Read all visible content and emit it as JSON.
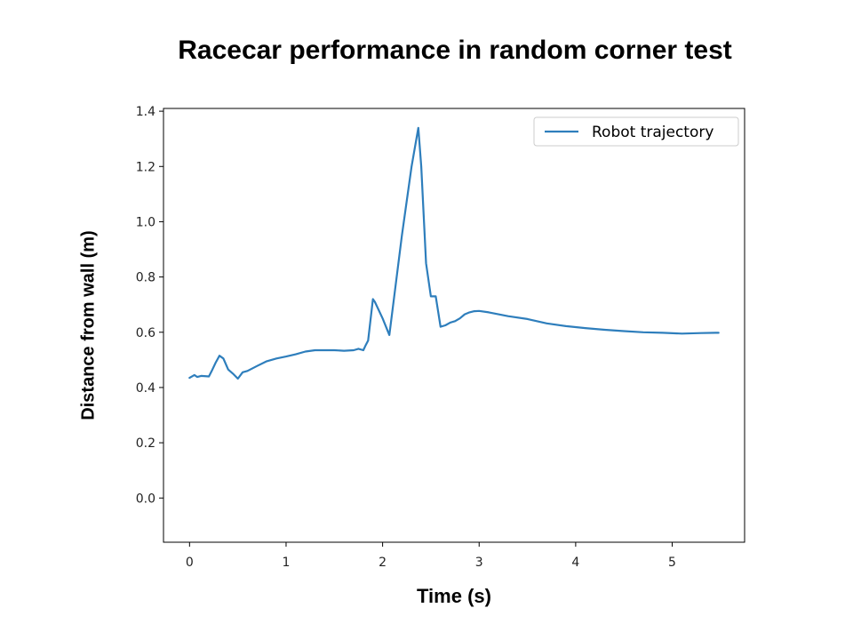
{
  "chart_data": {
    "type": "line",
    "title": "Racecar performance in random corner test",
    "xlabel": "Time (s)",
    "ylabel": "Distance from wall (m)",
    "xlim": [
      -0.27,
      5.75
    ],
    "ylim": [
      -0.16,
      1.41
    ],
    "xticks": [
      0,
      1,
      2,
      3,
      4,
      5
    ],
    "yticks": [
      0.0,
      0.2,
      0.4,
      0.6,
      0.8,
      1.0,
      1.2,
      1.4
    ],
    "xtick_labels": [
      "0",
      "1",
      "2",
      "3",
      "4",
      "5"
    ],
    "ytick_labels": [
      "0.0",
      "0.2",
      "0.4",
      "0.6",
      "0.8",
      "1.0",
      "1.2",
      "1.4"
    ],
    "grid": false,
    "legend_position": "top-right",
    "color": "#2e7ebc",
    "series": [
      {
        "name": "Robot trajectory",
        "x": [
          0.0,
          0.05,
          0.08,
          0.12,
          0.2,
          0.23,
          0.27,
          0.31,
          0.35,
          0.4,
          0.45,
          0.5,
          0.55,
          0.6,
          0.7,
          0.8,
          0.9,
          1.0,
          1.1,
          1.2,
          1.3,
          1.4,
          1.5,
          1.6,
          1.7,
          1.75,
          1.8,
          1.82,
          1.85,
          1.9,
          1.92,
          2.0,
          2.07,
          2.2,
          2.3,
          2.37,
          2.4,
          2.45,
          2.5,
          2.55,
          2.6,
          2.65,
          2.7,
          2.75,
          2.8,
          2.85,
          2.9,
          2.95,
          3.0,
          3.1,
          3.2,
          3.3,
          3.5,
          3.7,
          3.9,
          4.1,
          4.3,
          4.5,
          4.7,
          4.9,
          5.1,
          5.3,
          5.45,
          5.48
        ],
        "y": [
          0.435,
          0.445,
          0.438,
          0.442,
          0.44,
          0.46,
          0.49,
          0.515,
          0.505,
          0.465,
          0.45,
          0.432,
          0.455,
          0.46,
          0.478,
          0.495,
          0.505,
          0.512,
          0.52,
          0.53,
          0.535,
          0.535,
          0.535,
          0.533,
          0.535,
          0.54,
          0.535,
          0.55,
          0.57,
          0.72,
          0.71,
          0.65,
          0.59,
          0.95,
          1.2,
          1.34,
          1.2,
          0.85,
          0.73,
          0.73,
          0.62,
          0.625,
          0.635,
          0.64,
          0.65,
          0.665,
          0.672,
          0.676,
          0.677,
          0.672,
          0.665,
          0.658,
          0.648,
          0.632,
          0.622,
          0.615,
          0.609,
          0.604,
          0.6,
          0.598,
          0.595,
          0.597,
          0.598,
          0.598
        ]
      }
    ]
  }
}
